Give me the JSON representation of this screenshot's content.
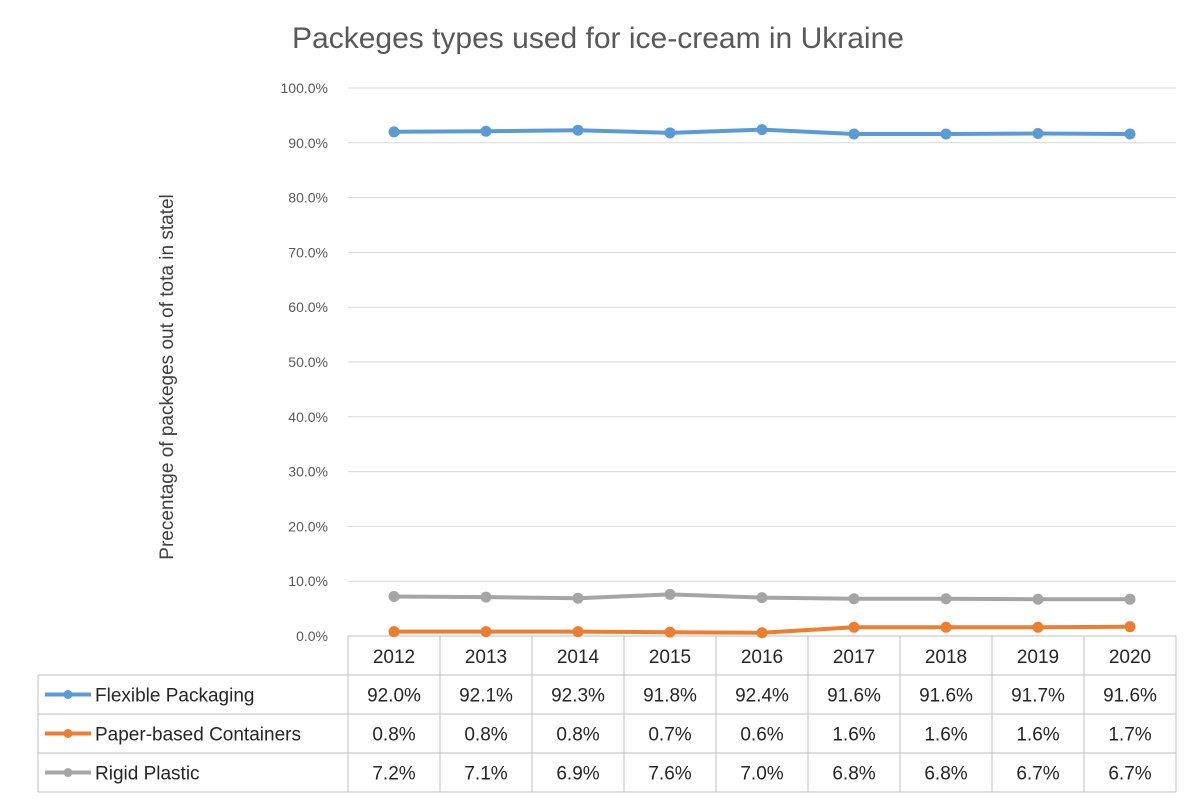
{
  "chart_data": {
    "type": "line",
    "title": "Packeges types used for ice-cream in Ukraine",
    "ylabel": "Precentage of packeges out of tota in statel",
    "xlabel": "",
    "categories": [
      "2012",
      "2013",
      "2014",
      "2015",
      "2016",
      "2017",
      "2018",
      "2019",
      "2020"
    ],
    "ylim": [
      0,
      100
    ],
    "yticks": [
      "0.0%",
      "10.0%",
      "20.0%",
      "30.0%",
      "40.0%",
      "50.0%",
      "60.0%",
      "70.0%",
      "80.0%",
      "90.0%",
      "100.0%"
    ],
    "grid": true,
    "legend": "data-table",
    "series": [
      {
        "name": "Flexible Packaging",
        "color": "#5b9bd5",
        "values": [
          92.0,
          92.1,
          92.3,
          91.8,
          92.4,
          91.6,
          91.6,
          91.7,
          91.6
        ],
        "labels": [
          "92.0%",
          "92.1%",
          "92.3%",
          "91.8%",
          "92.4%",
          "91.6%",
          "91.6%",
          "91.7%",
          "91.6%"
        ]
      },
      {
        "name": "Paper-based Containers",
        "color": "#ed7d31",
        "values": [
          0.8,
          0.8,
          0.8,
          0.7,
          0.6,
          1.6,
          1.6,
          1.6,
          1.7
        ],
        "labels": [
          "0.8%",
          "0.8%",
          "0.8%",
          "0.7%",
          "0.6%",
          "1.6%",
          "1.6%",
          "1.6%",
          "1.7%"
        ]
      },
      {
        "name": "Rigid Plastic",
        "color": "#a5a5a5",
        "values": [
          7.2,
          7.1,
          6.9,
          7.6,
          7.0,
          6.8,
          6.8,
          6.7,
          6.7
        ],
        "labels": [
          "7.2%",
          "7.1%",
          "6.9%",
          "7.6%",
          "7.0%",
          "6.8%",
          "6.8%",
          "6.7%",
          "6.7%"
        ]
      }
    ]
  }
}
